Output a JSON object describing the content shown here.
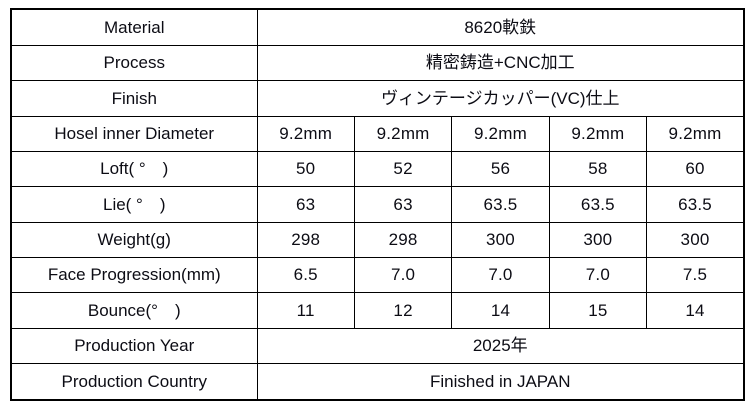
{
  "table": {
    "rows": [
      {
        "label": "Material",
        "value": "8620軟鉄"
      },
      {
        "label": "Process",
        "value": "精密鋳造+CNC加工"
      },
      {
        "label": "Finish",
        "value": "ヴィンテージカッパー(VC)仕上"
      },
      {
        "label": "Hosel inner Diameter",
        "values": [
          "9.2mm",
          "9.2mm",
          "9.2mm",
          "9.2mm",
          "9.2mm"
        ]
      },
      {
        "label": "Loft( °　)",
        "values": [
          "50",
          "52",
          "56",
          "58",
          "60"
        ]
      },
      {
        "label": "Lie( °　)",
        "values": [
          "63",
          "63",
          "63.5",
          "63.5",
          "63.5"
        ]
      },
      {
        "label": "Weight(g)",
        "values": [
          "298",
          "298",
          "300",
          "300",
          "300"
        ]
      },
      {
        "label": "Face Progression(mm)",
        "values": [
          "6.5",
          "7.0",
          "7.0",
          "7.0",
          "7.5"
        ]
      },
      {
        "label": "Bounce(°　)",
        "values": [
          "11",
          "12",
          "14",
          "15",
          "14"
        ]
      },
      {
        "label": "Production Year",
        "value": "2025年"
      },
      {
        "label": "Production Country",
        "value": "Finished in JAPAN"
      }
    ]
  },
  "colors": {
    "border": "#000000",
    "text": "#0c0c14",
    "background": "#ffffff"
  }
}
